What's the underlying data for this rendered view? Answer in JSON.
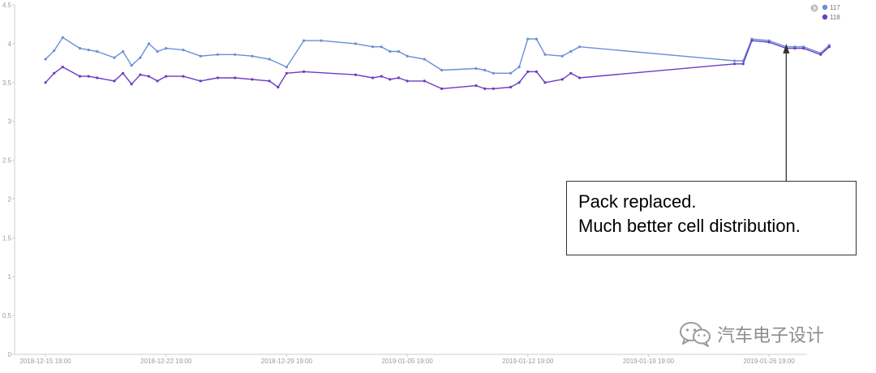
{
  "chart_data": {
    "type": "line",
    "title": "",
    "xlabel": "",
    "ylabel": "",
    "ylim": [
      0,
      4.5
    ],
    "yticks": [
      "0",
      "0.5",
      "1",
      "1.5",
      "2",
      "2.5",
      "3",
      "3.5",
      "4",
      "4.5"
    ],
    "xlim": [
      "2018-12-14 00:00",
      "2019-01-29 00:00"
    ],
    "xticks": [
      "2018-12-15 19:00",
      "2018-12-22 19:00",
      "2018-12-29 19:00",
      "2019-01-05 19:00",
      "2019-01-12 19:00",
      "2019-01-19 19:00",
      "2019-01-26 19:00"
    ],
    "grid": false,
    "legend_position": "top-right",
    "series": [
      {
        "name": "117",
        "color": "#6a8fd8",
        "x": [
          "2018-12-15 19:00",
          "2018-12-16 07:00",
          "2018-12-16 19:00",
          "2018-12-17 19:00",
          "2018-12-18 07:00",
          "2018-12-18 19:00",
          "2018-12-19 19:00",
          "2018-12-20 07:00",
          "2018-12-20 19:00",
          "2018-12-21 07:00",
          "2018-12-21 19:00",
          "2018-12-22 07:00",
          "2018-12-22 19:00",
          "2018-12-23 19:00",
          "2018-12-24 19:00",
          "2018-12-25 19:00",
          "2018-12-26 19:00",
          "2018-12-27 19:00",
          "2018-12-28 19:00",
          "2018-12-29 19:00",
          "2018-12-30 19:00",
          "2018-12-31 19:00",
          "2019-01-02 19:00",
          "2019-01-03 19:00",
          "2019-01-04 07:00",
          "2019-01-04 19:00",
          "2019-01-05 07:00",
          "2019-01-05 19:00",
          "2019-01-06 19:00",
          "2019-01-07 19:00",
          "2019-01-09 19:00",
          "2019-01-10 07:00",
          "2019-01-10 19:00",
          "2019-01-11 19:00",
          "2019-01-12 07:00",
          "2019-01-12 19:00",
          "2019-01-13 07:00",
          "2019-01-13 19:00",
          "2019-01-14 19:00",
          "2019-01-15 07:00",
          "2019-01-15 19:00",
          "2019-01-24 19:00",
          "2019-01-25 07:00",
          "2019-01-25 19:00",
          "2019-01-26 19:00",
          "2019-01-27 19:00",
          "2019-01-28 07:00",
          "2019-01-28 19:00",
          "2019-01-29 19:00",
          "2019-01-30 07:00"
        ],
        "values": [
          3.8,
          3.91,
          4.08,
          3.94,
          3.92,
          3.9,
          3.82,
          3.9,
          3.72,
          3.82,
          4.0,
          3.9,
          3.94,
          3.92,
          3.84,
          3.86,
          3.86,
          3.84,
          3.8,
          3.7,
          4.04,
          4.04,
          4.0,
          3.96,
          3.96,
          3.9,
          3.9,
          3.84,
          3.8,
          3.66,
          3.68,
          3.66,
          3.62,
          3.62,
          3.7,
          4.06,
          4.06,
          3.86,
          3.84,
          3.9,
          3.96,
          3.78,
          3.78,
          4.06,
          4.04,
          3.96,
          3.96,
          3.96,
          3.88,
          3.98
        ]
      },
      {
        "name": "118",
        "color": "#6a3cc4",
        "x": [
          "2018-12-15 19:00",
          "2018-12-16 07:00",
          "2018-12-16 19:00",
          "2018-12-17 19:00",
          "2018-12-18 07:00",
          "2018-12-18 19:00",
          "2018-12-19 19:00",
          "2018-12-20 07:00",
          "2018-12-20 19:00",
          "2018-12-21 07:00",
          "2018-12-21 19:00",
          "2018-12-22 07:00",
          "2018-12-22 19:00",
          "2018-12-23 19:00",
          "2018-12-24 19:00",
          "2018-12-25 19:00",
          "2018-12-26 19:00",
          "2018-12-27 19:00",
          "2018-12-28 19:00",
          "2018-12-29 07:00",
          "2018-12-29 19:00",
          "2018-12-30 19:00",
          "2019-01-02 19:00",
          "2019-01-03 19:00",
          "2019-01-04 07:00",
          "2019-01-04 19:00",
          "2019-01-05 07:00",
          "2019-01-05 19:00",
          "2019-01-06 19:00",
          "2019-01-07 19:00",
          "2019-01-09 19:00",
          "2019-01-10 07:00",
          "2019-01-10 19:00",
          "2019-01-11 19:00",
          "2019-01-12 07:00",
          "2019-01-12 19:00",
          "2019-01-13 07:00",
          "2019-01-13 19:00",
          "2019-01-14 19:00",
          "2019-01-15 07:00",
          "2019-01-15 19:00",
          "2019-01-24 19:00",
          "2019-01-25 07:00",
          "2019-01-25 19:00",
          "2019-01-26 19:00",
          "2019-01-27 19:00",
          "2019-01-28 07:00",
          "2019-01-28 19:00",
          "2019-01-29 19:00",
          "2019-01-30 07:00"
        ],
        "values": [
          3.5,
          3.62,
          3.7,
          3.58,
          3.58,
          3.56,
          3.52,
          3.62,
          3.48,
          3.6,
          3.58,
          3.52,
          3.58,
          3.58,
          3.52,
          3.56,
          3.56,
          3.54,
          3.52,
          3.44,
          3.62,
          3.64,
          3.6,
          3.56,
          3.58,
          3.54,
          3.56,
          3.52,
          3.52,
          3.42,
          3.46,
          3.42,
          3.42,
          3.44,
          3.5,
          3.64,
          3.64,
          3.5,
          3.54,
          3.62,
          3.56,
          3.74,
          3.74,
          4.04,
          4.02,
          3.94,
          3.94,
          3.94,
          3.86,
          3.96
        ]
      }
    ],
    "annotations": [
      {
        "lines": [
          "Pack replaced.",
          "Much better cell distribution."
        ],
        "arrow_to_x": "2019-01-27 19:00"
      }
    ]
  },
  "watermark": {
    "text": "汽车电子设计",
    "icon": "wechat-icon"
  }
}
